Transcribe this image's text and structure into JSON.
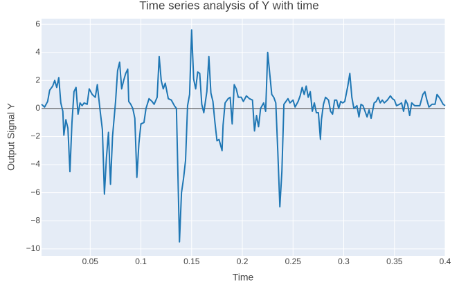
{
  "chart_data": {
    "type": "line",
    "title": "Time series analysis of Y with time",
    "x_label": "Time",
    "y_label": "Output Signal Y",
    "x": [
      0.002,
      0.005,
      0.008,
      0.01,
      0.013,
      0.015,
      0.017,
      0.019,
      0.021,
      0.023,
      0.024,
      0.026,
      0.028,
      0.03,
      0.032,
      0.034,
      0.036,
      0.038,
      0.04,
      0.042,
      0.044,
      0.047,
      0.049,
      0.052,
      0.055,
      0.057,
      0.06,
      0.062,
      0.064,
      0.066,
      0.068,
      0.07,
      0.072,
      0.075,
      0.077,
      0.079,
      0.081,
      0.083,
      0.085,
      0.087,
      0.088,
      0.09,
      0.092,
      0.094,
      0.096,
      0.098,
      0.1,
      0.103,
      0.105,
      0.108,
      0.111,
      0.113,
      0.116,
      0.118,
      0.12,
      0.122,
      0.124,
      0.127,
      0.13,
      0.133,
      0.135,
      0.138,
      0.14,
      0.142,
      0.144,
      0.146,
      0.148,
      0.15,
      0.152,
      0.154,
      0.156,
      0.158,
      0.16,
      0.162,
      0.165,
      0.167,
      0.169,
      0.171,
      0.173,
      0.175,
      0.177,
      0.18,
      0.181,
      0.183,
      0.186,
      0.188,
      0.19,
      0.192,
      0.194,
      0.196,
      0.199,
      0.201,
      0.204,
      0.207,
      0.21,
      0.212,
      0.214,
      0.216,
      0.218,
      0.221,
      0.223,
      0.225,
      0.227,
      0.229,
      0.231,
      0.233,
      0.235,
      0.237,
      0.239,
      0.241,
      0.243,
      0.245,
      0.247,
      0.25,
      0.252,
      0.255,
      0.257,
      0.259,
      0.261,
      0.263,
      0.265,
      0.267,
      0.269,
      0.271,
      0.273,
      0.275,
      0.277,
      0.278,
      0.28,
      0.282,
      0.285,
      0.287,
      0.289,
      0.291,
      0.293,
      0.295,
      0.297,
      0.299,
      0.301,
      0.304,
      0.306,
      0.308,
      0.31,
      0.313,
      0.315,
      0.317,
      0.319,
      0.321,
      0.323,
      0.325,
      0.327,
      0.33,
      0.332,
      0.334,
      0.336,
      0.338,
      0.34,
      0.343,
      0.346,
      0.348,
      0.35,
      0.352,
      0.355,
      0.357,
      0.359,
      0.361,
      0.363,
      0.365,
      0.367,
      0.37,
      0.373,
      0.375,
      0.378,
      0.38,
      0.382,
      0.384,
      0.387,
      0.39,
      0.392,
      0.395,
      0.398,
      0.4
    ],
    "series": [
      {
        "name": "Y",
        "color": "#1f77b4",
        "values": [
          0.3,
          0.1,
          0.5,
          1.3,
          1.6,
          2.0,
          1.5,
          2.2,
          0.4,
          -0.2,
          -1.9,
          -0.8,
          -1.4,
          -4.5,
          -1,
          1.2,
          1.5,
          -0.4,
          0.4,
          0.2,
          0.4,
          0.3,
          1.4,
          1.0,
          0.8,
          1.7,
          -0.3,
          -1.5,
          -6.1,
          -3.5,
          -1.7,
          -5.4,
          -2,
          0.5,
          2.7,
          3.3,
          1.4,
          2,
          2.5,
          2.8,
          0.5,
          0.3,
          0,
          -0.7,
          -4.9,
          -2.5,
          -1.1,
          -1,
          0,
          0.7,
          0.5,
          0.3,
          0.8,
          3.7,
          2.0,
          1.4,
          1.8,
          0.7,
          0.6,
          0.2,
          0,
          -9.5,
          -6,
          -5,
          -3.7,
          0.2,
          1.0,
          5.6,
          2.1,
          1.4,
          2.6,
          2.5,
          0.3,
          -0.3,
          1.2,
          3.7,
          1.1,
          0.5,
          -1.0,
          -2.3,
          -2.2,
          -3.0,
          -1.2,
          0.4,
          0.7,
          0.8,
          -1.1,
          1.7,
          1.4,
          0.8,
          0.8,
          0.5,
          0.9,
          0.7,
          0.6,
          -1.6,
          -0.5,
          -1.3,
          0,
          0.4,
          -0.2,
          4.0,
          2.5,
          1.0,
          0.8,
          0.4,
          -3.1,
          -7.0,
          -4.5,
          0.3,
          0.5,
          0.7,
          0.4,
          0.6,
          0.1,
          0.5,
          0.9,
          1.5,
          1.0,
          1.6,
          0.8,
          1.2,
          -0.2,
          0.4,
          -0.3,
          -0.3,
          -2.2,
          -0.8,
          0.3,
          0.8,
          0.6,
          -0.2,
          -0.4,
          0.6,
          0.6,
          0,
          0.5,
          0.4,
          0.5,
          1.6,
          2.5,
          0.8,
          0,
          0.2,
          -0.6,
          0.3,
          0.2,
          -0.2,
          -0.6,
          -0.1,
          -0.7,
          0.4,
          0.5,
          0.8,
          0.4,
          0.6,
          0.4,
          0.6,
          0.9,
          0.7,
          0.6,
          0.2,
          0.3,
          0.4,
          -0.2,
          0.6,
          0.3,
          -0.5,
          0.4,
          0.2,
          0.2,
          0.2,
          1.0,
          1.2,
          0.6,
          0.1,
          0.3,
          0.3,
          1.0,
          0.7,
          0.3,
          0.2
        ]
      }
    ],
    "xlim": [
      0.002,
      0.4
    ],
    "xticks": [
      0.05,
      0.1,
      0.15,
      0.2,
      0.25,
      0.3,
      0.35,
      0.4
    ],
    "ylim": [
      -10.5,
      6.4
    ],
    "yticks": [
      {
        "value": -10,
        "label": "−10"
      },
      {
        "value": -8,
        "label": "−8"
      },
      {
        "value": -6,
        "label": "−6"
      },
      {
        "value": -4,
        "label": "−4"
      },
      {
        "value": -2,
        "label": "−2"
      },
      0,
      2,
      4,
      6
    ],
    "grid": true
  }
}
